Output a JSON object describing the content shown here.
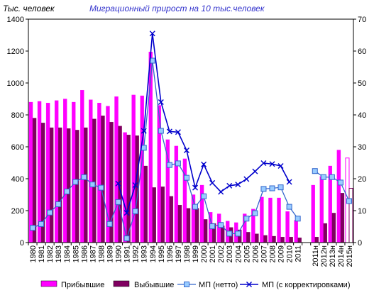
{
  "chart_data": {
    "type": "bar",
    "title": "Миграционный прирост на 10 тыс.человек",
    "ylabel": "Тыс. человек",
    "ylim": [
      0,
      1400
    ],
    "yticks": [
      0,
      200,
      400,
      600,
      800,
      1000,
      1200,
      1400
    ],
    "y2lim": [
      0,
      70
    ],
    "y2ticks": [
      0,
      10,
      20,
      30,
      40,
      50,
      60,
      70
    ],
    "categories": [
      "1980",
      "1981",
      "1982",
      "1983",
      "1984",
      "1985",
      "1986",
      "1987",
      "1988",
      "1989",
      "1990",
      "1991",
      "1992",
      "1993",
      "1994",
      "1995",
      "1996",
      "1997",
      "1998",
      "1999",
      "2000",
      "2001",
      "2002",
      "2003",
      "2004",
      "2005",
      "2006",
      "2007",
      "2008",
      "2009",
      "2010",
      "2011",
      "",
      "2011н",
      "2012н",
      "2013н",
      "2014н",
      "2015н"
    ],
    "series": [
      {
        "name": "Прибывшие",
        "kind": "bar",
        "color": "#ff00ff",
        "values": [
          880,
          885,
          875,
          890,
          900,
          880,
          955,
          895,
          875,
          855,
          915,
          690,
          925,
          920,
          1195,
          860,
          645,
          605,
          525,
          300,
          360,
          190,
          180,
          135,
          125,
          180,
          210,
          285,
          280,
          280,
          195,
          140,
          null,
          360,
          415,
          480,
          580,
          530
        ],
        "hollow_index": 37
      },
      {
        "name": "Выбывшие",
        "kind": "bar",
        "color": "#800060",
        "values": [
          780,
          750,
          720,
          720,
          715,
          705,
          720,
          775,
          795,
          755,
          730,
          675,
          670,
          480,
          345,
          350,
          290,
          235,
          215,
          215,
          145,
          120,
          105,
          95,
          80,
          65,
          55,
          45,
          40,
          35,
          35,
          30,
          null,
          35,
          120,
          185,
          310,
          340
        ],
        "hollow_index": 37
      },
      {
        "name": "МП  (нетто)",
        "kind": "line",
        "axis": "right",
        "color": "#3366cc",
        "marker": "square",
        "values": [
          4.6,
          5.8,
          9.4,
          12,
          16,
          19,
          20.5,
          18.2,
          17.2,
          5.8,
          12.7,
          1.3,
          9.8,
          29.7,
          57,
          35,
          24.3,
          24.8,
          20.3,
          11.2,
          14.5,
          5.1,
          5.5,
          2.8,
          2.8,
          7.5,
          9.2,
          16.8,
          17,
          17.3,
          11.2,
          7.5,
          null,
          22.4,
          20.5,
          20.5,
          18.8,
          13
        ]
      },
      {
        "name": "МП  (с корректировками)",
        "kind": "line",
        "axis": "right",
        "color": "#0000cc",
        "marker": "x",
        "values": [
          null,
          null,
          null,
          null,
          null,
          null,
          null,
          null,
          null,
          null,
          18.5,
          9.3,
          18,
          35,
          65.5,
          44,
          34.8,
          34.6,
          28.9,
          17.2,
          24.5,
          18.7,
          15.9,
          17.8,
          18.2,
          19.9,
          22.3,
          24.9,
          24.6,
          24,
          19,
          null,
          null,
          null,
          null,
          null,
          null,
          null
        ]
      }
    ],
    "legend": {
      "position": "bottom"
    },
    "grid": false
  }
}
